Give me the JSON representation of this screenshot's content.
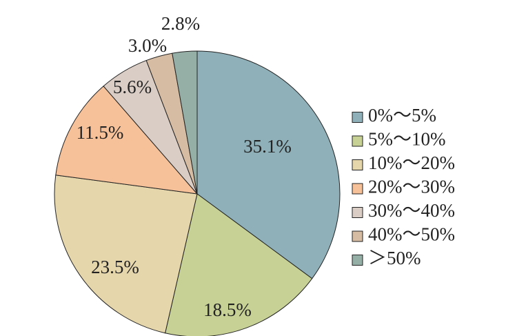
{
  "chart_data": {
    "type": "pie",
    "start_angle_deg": 0,
    "direction": "clockwise",
    "legend_position": "right",
    "slices": [
      {
        "label": "0%～5%",
        "value": 35.1,
        "display": "35.1%",
        "color": "#8fb0b8"
      },
      {
        "label": "5%～10%",
        "value": 18.5,
        "display": "18.5%",
        "color": "#c7d195"
      },
      {
        "label": "10%～20%",
        "value": 23.5,
        "display": "23.5%",
        "color": "#e6d6ac"
      },
      {
        "label": "20%～30%",
        "value": 11.5,
        "display": "11.5%",
        "color": "#f6c199"
      },
      {
        "label": "30%～40%",
        "value": 5.6,
        "display": "5.6%",
        "color": "#dacdc5"
      },
      {
        "label": "40%～50%",
        "value": 3.0,
        "display": "3.0%",
        "color": "#d6bca3"
      },
      {
        "label": "＞50%",
        "value": 2.8,
        "display": "2.8%",
        "color": "#95afa7"
      }
    ]
  }
}
